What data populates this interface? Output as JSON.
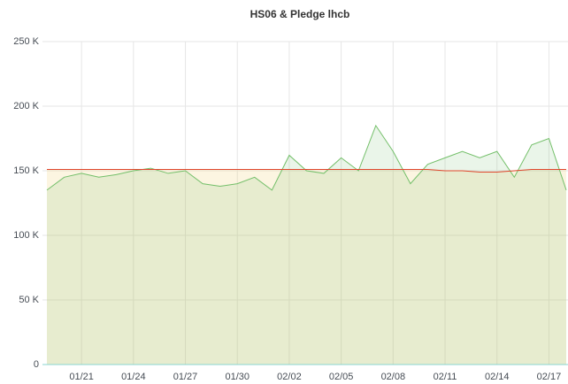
{
  "chart_data": {
    "type": "line",
    "title": "HS06 & Pledge lhcb",
    "categories": [
      null,
      null,
      "01/21",
      null,
      null,
      "01/24",
      null,
      null,
      "01/27",
      null,
      null,
      "01/30",
      null,
      null,
      "02/02",
      null,
      null,
      "02/05",
      null,
      null,
      "02/08",
      null,
      null,
      "02/11",
      null,
      null,
      "02/14",
      null,
      null,
      "02/17",
      null
    ],
    "series": [
      {
        "name": "HS06",
        "color": "#73bf69",
        "values": [
          135000,
          145000,
          148000,
          145000,
          147000,
          150000,
          152000,
          148000,
          150000,
          140000,
          138000,
          140000,
          145000,
          135000,
          162000,
          150000,
          148000,
          160000,
          150000,
          185000,
          165000,
          140000,
          155000,
          160000,
          165000,
          160000,
          165000,
          145000,
          170000,
          175000,
          135000
        ]
      },
      {
        "name": "Pledge",
        "color": "#e0462c",
        "values": [
          151000,
          151000,
          151000,
          151000,
          151000,
          151000,
          151000,
          151000,
          151000,
          151000,
          151000,
          151000,
          151000,
          151000,
          151000,
          151000,
          151000,
          151000,
          151000,
          151000,
          151000,
          151000,
          151000,
          150000,
          150000,
          149000,
          149000,
          150000,
          151000,
          151000,
          151000
        ]
      }
    ],
    "ylim": [
      0,
      250000
    ],
    "yticks": [
      {
        "value": 0,
        "label": "0"
      },
      {
        "value": 50000,
        "label": "50 K"
      },
      {
        "value": 100000,
        "label": "100 K"
      },
      {
        "value": 150000,
        "label": "150 K"
      },
      {
        "value": 200000,
        "label": "200 K"
      },
      {
        "value": 250000,
        "label": "250 K"
      }
    ],
    "grid": true
  }
}
